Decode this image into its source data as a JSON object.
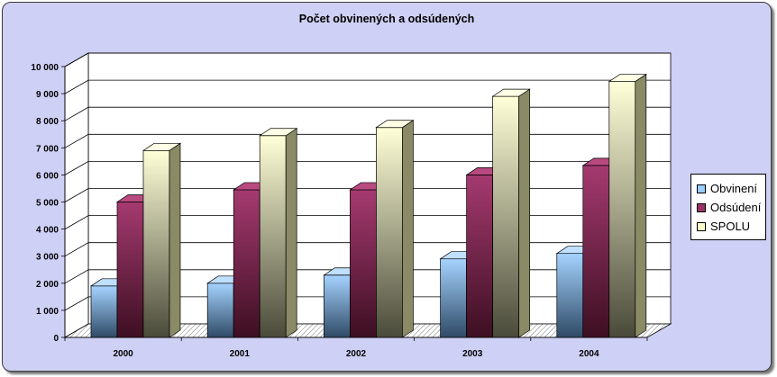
{
  "chart_data": {
    "type": "bar",
    "title": "Počet obvinených a odsúdených",
    "categories": [
      "2000",
      "2001",
      "2002",
      "2003",
      "2004"
    ],
    "series": [
      {
        "name": "Obvinení",
        "values": [
          1900,
          2000,
          2300,
          2900,
          3100
        ],
        "color": "#99ccff"
      },
      {
        "name": "Odsúdení",
        "values": [
          5000,
          5450,
          5450,
          6000,
          6350
        ],
        "color": "#993366"
      },
      {
        "name": "SPOLU",
        "values": [
          6900,
          7450,
          7750,
          8900,
          9450
        ],
        "color": "#ffffcc"
      }
    ],
    "ylim": [
      0,
      10000
    ],
    "yticks": [
      "0",
      "1 000",
      "2 000",
      "3 000",
      "4 000",
      "5 000",
      "6 000",
      "7 000",
      "8 000",
      "9 000",
      "10 000"
    ],
    "grid": true,
    "legend": "right",
    "background_color": "#cfd0f5"
  }
}
